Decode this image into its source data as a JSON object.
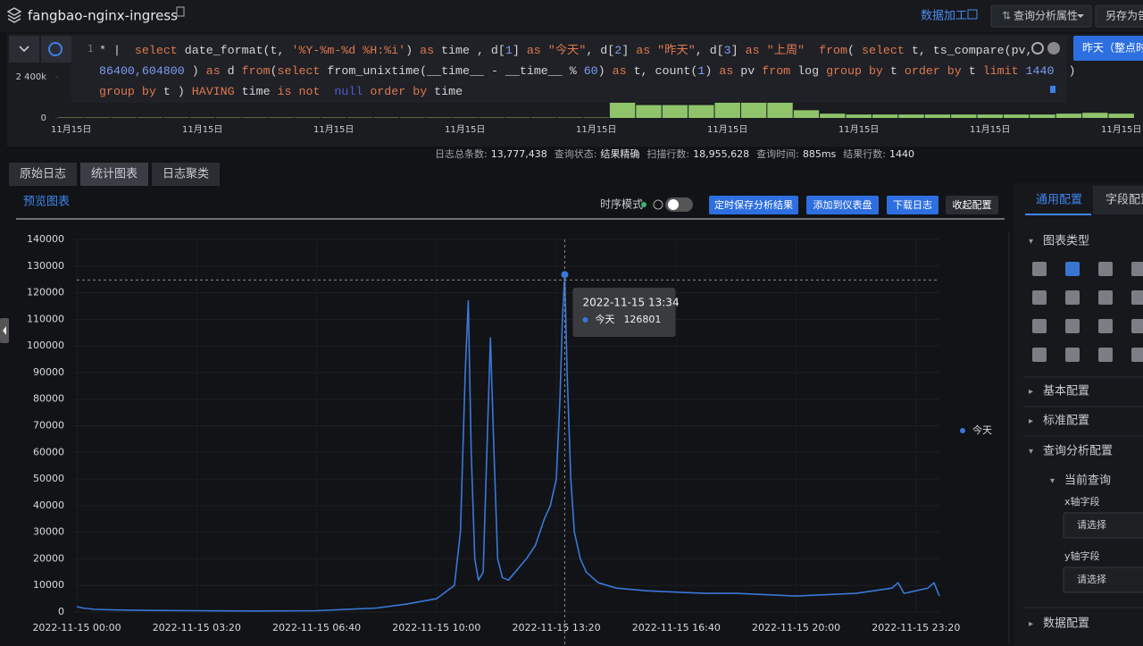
{
  "header": {
    "title": "fangbao-nginx-ingress",
    "data_process": "数据加工",
    "query_attr": "查询分析属性",
    "save_as": "另存为告"
  },
  "query": {
    "line_number": "1",
    "lines": [
      "* |  select date_format(t, '%Y-%m-%d %H:%i') as time , d[1] as \"今天\", d[2] as \"昨天\", d[3] as \"上周\"  from( select t, ts_compare(pv, ",
      "86400,604800 ) as d from(select from_unixtime(__time__ - __time__ % 60) as t, count(1) as pv from log group by t order by t limit 1440  )",
      "group by t ) HAVING time is not  null order by time"
    ],
    "time_button": "昨天（整点时间"
  },
  "stats": [
    {
      "label": "日志总条数:",
      "value": "13,777,438"
    },
    {
      "label": "查询状态:",
      "value": "结果精确"
    },
    {
      "label": "扫描行数:",
      "value": "18,955,628"
    },
    {
      "label": "查询时间:",
      "value": "885ms"
    },
    {
      "label": "结果行数:",
      "value": "1440"
    }
  ],
  "tabs": [
    "原始日志",
    "统计图表",
    "日志聚类"
  ],
  "preview_tab": "预览图表",
  "toolbar": {
    "mode": "时序模式",
    "buttons": [
      "定时保存分析结果",
      "添加到仪表盘",
      "下载日志",
      "收起配置"
    ]
  },
  "tooltip_time": "2022-11-15 13:34",
  "side_panel": {
    "tabs": [
      "通用配置",
      "字段配置"
    ],
    "chart_type": "图表类型",
    "sections": [
      "基本配置",
      "标准配置",
      "查询分析配置"
    ],
    "current_query": "当前查询",
    "x_field": "x轴字段",
    "y_field": "y轴字段",
    "placeholder": "请选择",
    "data_config": "数据配置"
  },
  "chart_data": [
    {
      "type": "line",
      "x": [
        0,
        10,
        30,
        60,
        120,
        200,
        300,
        400,
        500,
        550,
        600,
        630,
        640,
        648,
        653,
        658,
        664,
        670,
        678,
        684,
        690,
        696,
        702,
        710,
        720,
        735,
        750,
        765,
        780,
        790,
        800,
        806,
        810,
        814,
        818,
        824,
        830,
        840,
        850,
        870,
        900,
        950,
        1000,
        1050,
        1100,
        1150,
        1200,
        1250,
        1300,
        1360,
        1370,
        1380,
        1420,
        1430,
        1439
      ],
      "series": [
        {
          "name": "今天",
          "color": "#3a78d8",
          "values": [
            2000,
            1500,
            1000,
            800,
            600,
            500,
            400,
            500,
            1500,
            3000,
            5000,
            10000,
            30000,
            90000,
            117000,
            60000,
            20000,
            12000,
            15000,
            60000,
            103000,
            60000,
            20000,
            13000,
            12000,
            16000,
            20000,
            25000,
            35000,
            40000,
            50000,
            80000,
            110000,
            126801,
            90000,
            50000,
            30000,
            20000,
            15000,
            11000,
            9000,
            8000,
            7500,
            7000,
            7000,
            6500,
            6000,
            6500,
            7000,
            9000,
            11000,
            7000,
            9000,
            11000,
            6000
          ]
        }
      ],
      "xlim": [
        0,
        1439
      ],
      "xticks": [
        {
          "value": 0,
          "label": "2022-11-15 00:00"
        },
        {
          "value": 200,
          "label": "2022-11-15 03:20"
        },
        {
          "value": 400,
          "label": "2022-11-15 06:40"
        },
        {
          "value": 600,
          "label": "2022-11-15 10:00"
        },
        {
          "value": 800,
          "label": "2022-11-15 13:20"
        },
        {
          "value": 1000,
          "label": "2022-11-15 16:40"
        },
        {
          "value": 1200,
          "label": "2022-11-15 20:00"
        },
        {
          "value": 1400,
          "label": "2022-11-15 23:20"
        }
      ],
      "ylim": [
        0,
        140000
      ],
      "yticks": [
        0,
        10000,
        20000,
        30000,
        40000,
        50000,
        60000,
        70000,
        80000,
        90000,
        100000,
        110000,
        120000,
        130000,
        140000
      ],
      "grid": true,
      "legend": "right"
    },
    {
      "type": "bar",
      "categories": [
        "11月15日",
        null,
        null,
        null,
        null,
        "11月15日",
        null,
        null,
        null,
        null,
        "11月15日",
        null,
        null,
        null,
        null,
        "11月15日",
        null,
        null,
        null,
        null,
        "11月15日",
        null,
        null,
        null,
        null,
        "11月15日",
        null,
        null,
        null,
        null,
        "11月15日",
        null,
        null,
        null,
        null,
        "11月15日",
        null,
        null,
        null,
        null,
        "11月15日"
      ],
      "values": [
        25000,
        25000,
        25000,
        25000,
        25000,
        25000,
        25000,
        25000,
        25000,
        25000,
        25000,
        25000,
        25000,
        25000,
        25000,
        25000,
        25000,
        25000,
        25000,
        25000,
        25000,
        900000,
        750000,
        750000,
        750000,
        950000,
        950000,
        900000,
        450000,
        250000,
        200000,
        200000,
        200000,
        200000,
        200000,
        200000,
        200000,
        200000,
        250000,
        300000,
        250000
      ],
      "color": "#8fc46a",
      "ylim": [
        0,
        2400000
      ],
      "yticks": [
        0,
        {
          "value": 2400000,
          "label": "2 400k"
        }
      ]
    }
  ]
}
